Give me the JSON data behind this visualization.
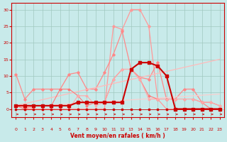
{
  "bg_color": "#c8eaea",
  "grid_color": "#a0c8c0",
  "x_label": "Vent moyen/en rafales ( km/h )",
  "x_ticks": [
    0,
    1,
    2,
    3,
    4,
    5,
    6,
    7,
    8,
    9,
    10,
    11,
    12,
    13,
    14,
    15,
    16,
    17,
    18,
    19,
    20,
    21,
    22,
    23
  ],
  "y_ticks": [
    0,
    5,
    10,
    15,
    20,
    25,
    30
  ],
  "ylim": [
    -2.5,
    32
  ],
  "xlim": [
    -0.5,
    23.5
  ],
  "series": {
    "rafale_big": {
      "y": [
        1,
        0,
        0,
        0,
        0,
        0,
        0,
        0,
        0,
        0,
        0,
        25,
        24,
        30,
        30,
        25,
        3,
        0,
        0,
        0,
        0,
        0,
        0,
        0
      ],
      "color": "#ff9999",
      "lw": 0.9,
      "marker": "D",
      "ms": 1.8
    },
    "moyen_big": {
      "y": [
        10.5,
        3,
        6,
        6,
        6,
        6,
        10.5,
        11,
        6,
        6,
        11,
        16.5,
        23.5,
        12,
        9.5,
        9,
        14,
        3,
        3,
        6,
        6,
        2,
        0,
        0
      ],
      "color": "#ff8888",
      "lw": 0.9,
      "marker": "D",
      "ms": 1.8
    },
    "trend1": {
      "x": [
        0,
        23
      ],
      "y": [
        1,
        15
      ],
      "color": "#ffbbbb",
      "lw": 0.9
    },
    "trend2": {
      "x": [
        0,
        23
      ],
      "y": [
        0.5,
        4.5
      ],
      "color": "#ffcccc",
      "lw": 0.8
    },
    "cluster1": {
      "y": [
        1,
        0,
        1,
        1,
        1,
        6,
        6,
        4,
        1,
        2,
        2,
        9,
        12,
        12,
        9,
        4,
        3,
        3,
        3,
        3,
        3,
        2,
        2,
        1
      ],
      "color": "#ff7777",
      "lw": 0.8,
      "marker": "D",
      "ms": 1.5
    },
    "cluster2": {
      "y": [
        1,
        1,
        0,
        0,
        0,
        0,
        0,
        4,
        4,
        1,
        2,
        9,
        12,
        12,
        9,
        3,
        3,
        3,
        3,
        3,
        3,
        2,
        2,
        1
      ],
      "color": "#ffaaaa",
      "lw": 0.8,
      "marker": "D",
      "ms": 1.5
    },
    "dark_red": {
      "y": [
        1,
        1,
        1,
        1,
        1,
        1,
        1,
        2,
        2,
        2,
        2,
        2,
        2,
        12,
        14,
        14,
        13,
        10,
        0,
        0,
        0,
        0,
        0,
        0
      ],
      "color": "#cc0000",
      "lw": 1.5,
      "marker": "s",
      "ms": 2.5
    },
    "bottom_line": {
      "y": [
        0,
        0,
        0,
        0,
        0,
        0,
        0,
        0,
        0,
        0,
        0,
        0,
        0,
        0,
        0,
        0,
        0,
        0,
        0,
        0,
        0,
        0,
        0,
        0
      ],
      "color": "#cc0000",
      "lw": 0.6,
      "marker": "s",
      "ms": 1.5
    }
  },
  "arrows_color": "#cc0000",
  "axis_label_color": "#cc0000",
  "tick_color": "#cc0000"
}
